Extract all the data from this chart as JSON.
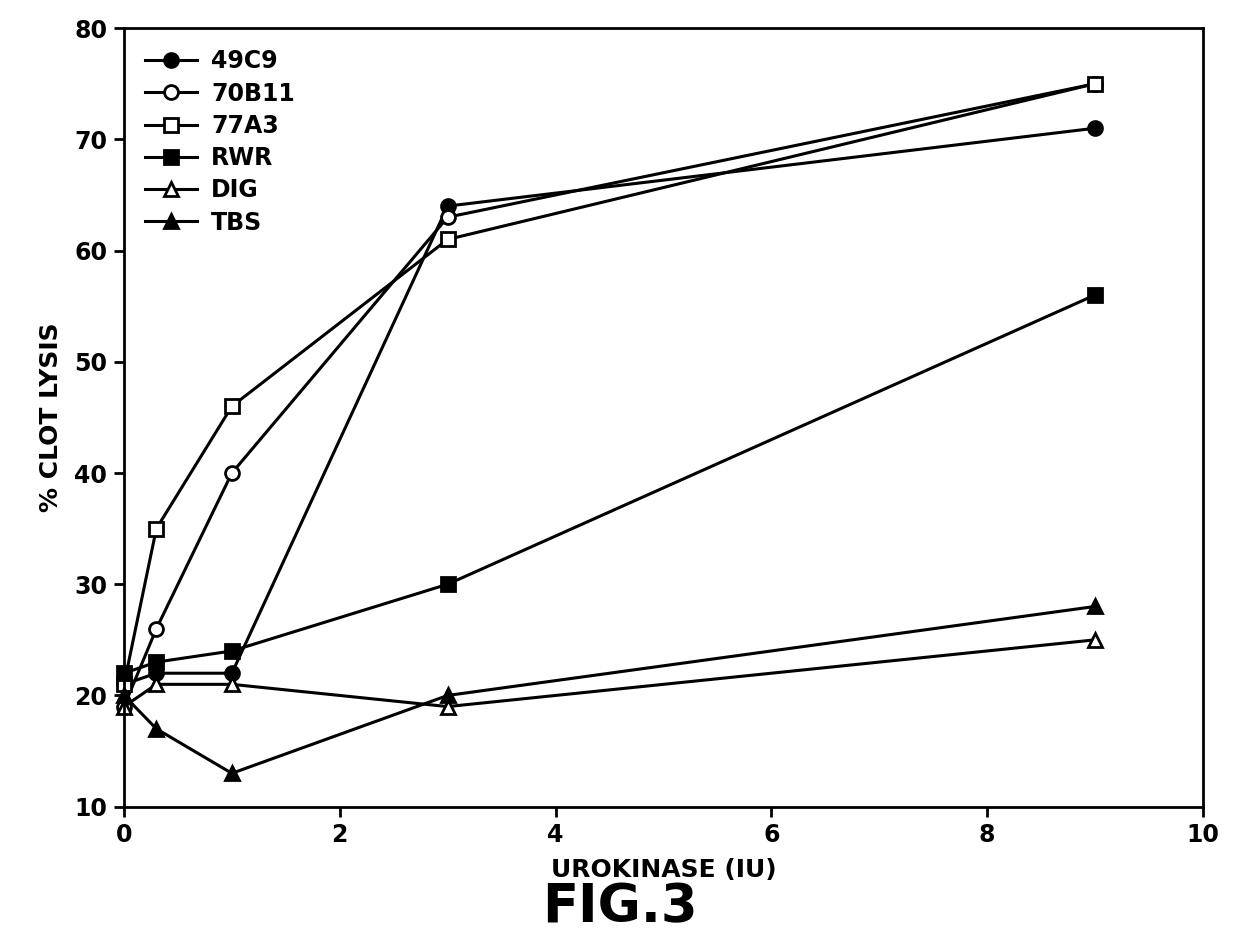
{
  "series": {
    "49C9": {
      "x": [
        0,
        0.3,
        1,
        3,
        9
      ],
      "y": [
        21,
        22,
        22,
        64,
        71
      ],
      "marker": "o",
      "markerfacecolor": "black",
      "markeredgecolor": "black",
      "linestyle": "-",
      "linewidth": 2.2,
      "markersize": 10
    },
    "70B11": {
      "x": [
        0,
        0.3,
        1,
        3,
        9
      ],
      "y": [
        19,
        26,
        40,
        63,
        75
      ],
      "marker": "o",
      "markerfacecolor": "white",
      "markeredgecolor": "black",
      "linestyle": "-",
      "linewidth": 2.2,
      "markersize": 10
    },
    "77A3": {
      "x": [
        0,
        0.3,
        1,
        3,
        9
      ],
      "y": [
        21,
        35,
        46,
        61,
        75
      ],
      "marker": "s",
      "markerfacecolor": "white",
      "markeredgecolor": "black",
      "linestyle": "-",
      "linewidth": 2.2,
      "markersize": 10
    },
    "RWR": {
      "x": [
        0,
        0.3,
        1,
        3,
        9
      ],
      "y": [
        22,
        23,
        24,
        30,
        56
      ],
      "marker": "s",
      "markerfacecolor": "black",
      "markeredgecolor": "black",
      "linestyle": "-",
      "linewidth": 2.2,
      "markersize": 10
    },
    "DIG": {
      "x": [
        0,
        0.3,
        1,
        3,
        9
      ],
      "y": [
        19,
        21,
        21,
        19,
        25
      ],
      "marker": "^",
      "markerfacecolor": "white",
      "markeredgecolor": "black",
      "linestyle": "-",
      "linewidth": 2.2,
      "markersize": 10
    },
    "TBS": {
      "x": [
        0,
        0.3,
        1,
        3,
        9
      ],
      "y": [
        20,
        17,
        13,
        20,
        28
      ],
      "marker": "^",
      "markerfacecolor": "black",
      "markeredgecolor": "black",
      "linestyle": "-",
      "linewidth": 2.2,
      "markersize": 10
    }
  },
  "xlabel": "UROKINASE (IU)",
  "ylabel": "% CLOT LYSIS",
  "xlim": [
    0,
    10
  ],
  "ylim": [
    10,
    80
  ],
  "xticks": [
    0,
    2,
    4,
    6,
    8,
    10
  ],
  "yticks": [
    10,
    20,
    30,
    40,
    50,
    60,
    70,
    80
  ],
  "figcaption": "FIG.3",
  "legend_order": [
    "49C9",
    "70B11",
    "77A3",
    "RWR",
    "DIG",
    "TBS"
  ],
  "background_color": "#ffffff",
  "tick_fontsize": 17,
  "label_fontsize": 18,
  "legend_fontsize": 17,
  "caption_fontsize": 38
}
